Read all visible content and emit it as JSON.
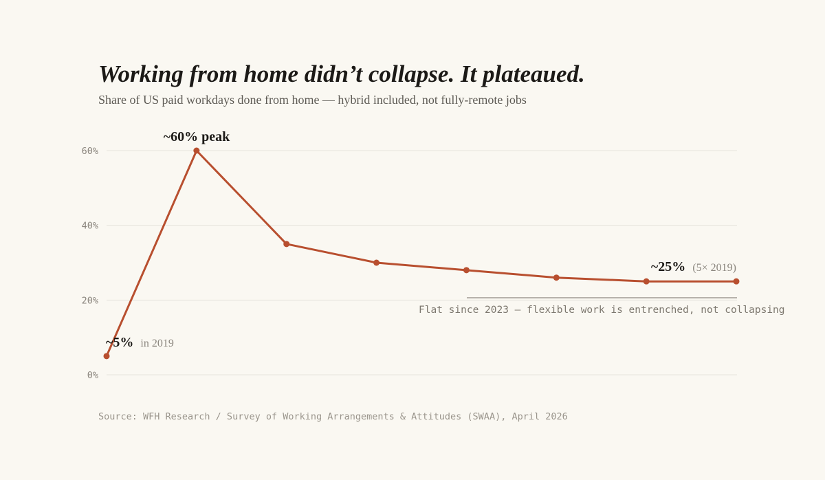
{
  "title": "Working from home didn’t collapse. It plateaued.",
  "subtitle": "Share of US paid workdays done from home — hybrid included, not fully-remote jobs",
  "source": "Source: WFH Research / Survey of Working Arrangements & Attitudes (SWAA), April 2026",
  "colors": {
    "line": "#b84f2f",
    "grid": "#e6e3dc",
    "background": "#faf8f2",
    "note_rule": "#8d8981"
  },
  "annotations": {
    "start_value": "~5%",
    "start_suffix": "in 2019",
    "peak": "~60% peak",
    "end_value": "~25%",
    "end_suffix": "(5× 2019)",
    "plateau_note": "Flat since 2023 — flexible work is entrenched, not collapsing"
  },
  "chart_data": {
    "type": "line",
    "title": "Working from home didn’t collapse. It plateaued.",
    "subtitle": "Share of US paid workdays done from home — hybrid included, not fully-remote jobs",
    "xlabel": "",
    "ylabel": "",
    "series": [
      {
        "values": [
          5,
          60,
          35,
          30,
          28,
          26,
          25,
          25
        ]
      }
    ],
    "ylim": [
      0,
      60
    ],
    "yticks": [
      0,
      20,
      40,
      60
    ],
    "ytick_labels": [
      "0%",
      "20%",
      "40%",
      "60%"
    ],
    "grid": true,
    "legend": "none"
  }
}
